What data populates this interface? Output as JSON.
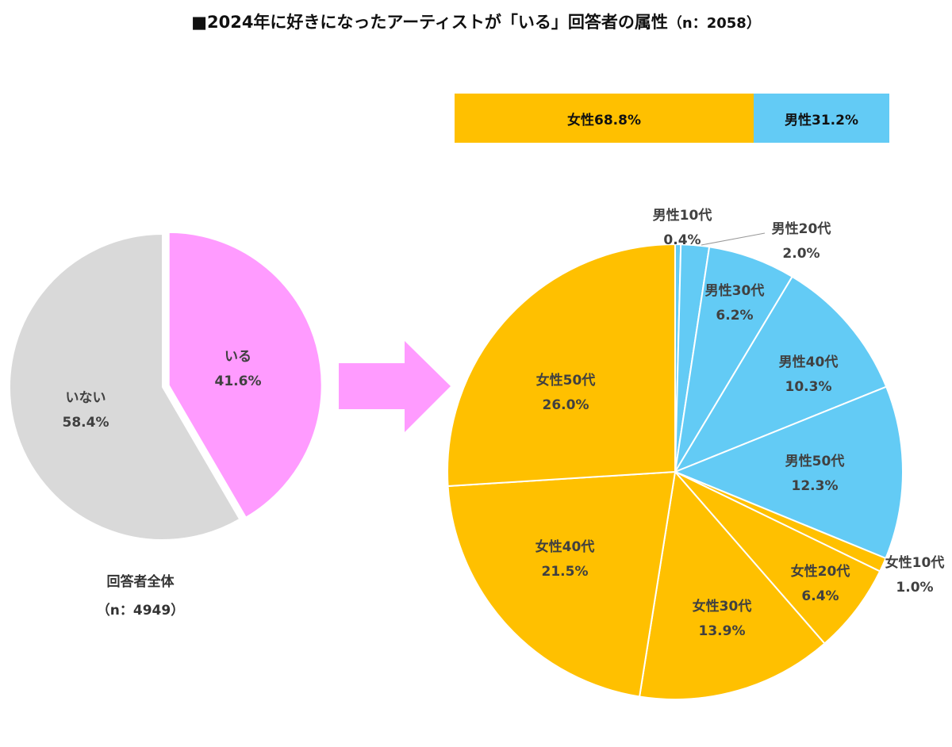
{
  "title": "■2024年に好きになったアーティストが「いる」回答者の属性",
  "title_n": "（n：2058）",
  "overall_caption": {
    "label": "回答者全体",
    "n": "（n：4949）"
  },
  "colors": {
    "female": "#FFC000",
    "male": "#63CBF5",
    "iru": "#FF9BFF",
    "inai": "#D9D9D9",
    "arrow": "#FF9BFF"
  },
  "chart_data": [
    {
      "type": "pie",
      "name": "overall",
      "slices": [
        {
          "label": "いる",
          "value": 41.6,
          "value_label": "41.6%",
          "color": "#FF9BFF"
        },
        {
          "label": "いない",
          "value": 58.4,
          "value_label": "58.4%",
          "color": "#D9D9D9"
        }
      ]
    },
    {
      "type": "bar",
      "name": "gender",
      "orientation": "horizontal-stacked",
      "segments": [
        {
          "label": "女性68.8%",
          "value": 68.8,
          "color": "#FFC000"
        },
        {
          "label": "男性31.2%",
          "value": 31.2,
          "color": "#63CBF5"
        }
      ]
    },
    {
      "type": "pie",
      "name": "attribute",
      "slices": [
        {
          "label": "男性10代",
          "value": 0.4,
          "value_label": "0.4%",
          "color": "#63CBF5"
        },
        {
          "label": "男性20代",
          "value": 2.0,
          "value_label": "2.0%",
          "color": "#63CBF5"
        },
        {
          "label": "男性30代",
          "value": 6.2,
          "value_label": "6.2%",
          "color": "#63CBF5"
        },
        {
          "label": "男性40代",
          "value": 10.3,
          "value_label": "10.3%",
          "color": "#63CBF5"
        },
        {
          "label": "男性50代",
          "value": 12.3,
          "value_label": "12.3%",
          "color": "#63CBF5"
        },
        {
          "label": "女性10代",
          "value": 1.0,
          "value_label": "1.0%",
          "color": "#FFC000"
        },
        {
          "label": "女性20代",
          "value": 6.4,
          "value_label": "6.4%",
          "color": "#FFC000"
        },
        {
          "label": "女性30代",
          "value": 13.9,
          "value_label": "13.9%",
          "color": "#FFC000"
        },
        {
          "label": "女性40代",
          "value": 21.5,
          "value_label": "21.5%",
          "color": "#FFC000"
        },
        {
          "label": "女性50代",
          "value": 26.0,
          "value_label": "26.0%",
          "color": "#FFC000"
        }
      ]
    }
  ]
}
